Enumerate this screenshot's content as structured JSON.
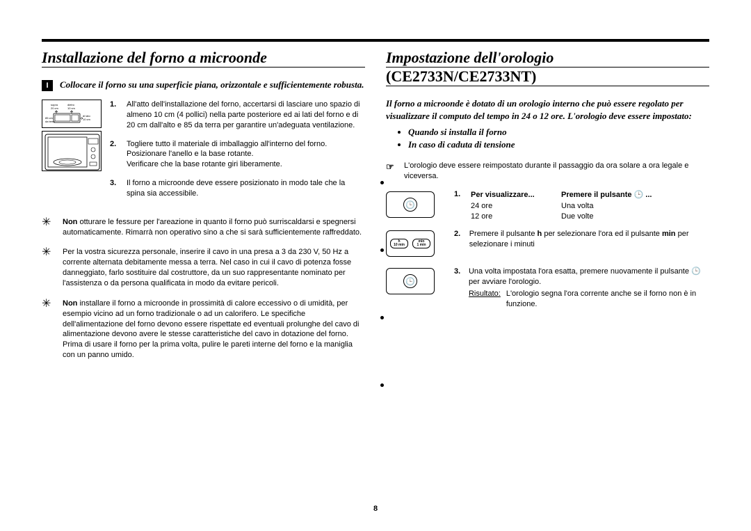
{
  "page_number": "8",
  "left": {
    "title": "Installazione del forno a microonde",
    "intro": "Collocare il forno su una superficie piana, orizzontale e sufficientemente robusta.",
    "diagram_labels": {
      "top": "sopra 20 cm",
      "back": "dietro 10 cm",
      "floor": "85 cm da terra",
      "side": "di lato 10 cm"
    },
    "steps": [
      "All'atto dell'installazione del forno, accertarsi di lasciare uno spazio di almeno 10 cm (4 pollici) nella parte posteriore ed ai lati del forno e di 20 cm dall'alto e 85 da terra per garantire un'adeguata ventilazione.",
      "Togliere tutto il materiale di imballaggio all'interno del forno.\nPosizionare l'anello e la base rotante.\nVerificare che la base rotante giri liberamente.",
      "Il forno a microonde deve essere posizionato in modo tale che la spina sia accessibile."
    ],
    "warnings": [
      "<b>Non</b> otturare le fessure per l'areazione in quanto il forno può surriscaldarsi e spegnersi automaticamente. Rimarrà non operativo sino a che si sarà sufficientemente raffreddato.",
      "Per la vostra sicurezza personale, inserire il cavo in una presa a 3 da 230 V, 50 Hz a corrente alternata debitamente messa a terra. Nel caso in cui il cavo di potenza fosse danneggiato, farlo sostituire dal costruttore, da un suo rappresentante nominato per l'assistenza o da persona qualificata in modo da evitare pericoli.",
      "<b>Non</b> installare il forno a microonde in prossimità di calore eccessivo o di umidità, per esempio vicino ad un forno tradizionale o ad un calorifero. Le specifiche dell'alimentazione del forno devono essere rispettate ed eventuali prolunghe del cavo di alimentazione devono avere le stesse caratteristiche del cavo in dotazione del forno. Prima di usare il forno per la prima volta, pulire le pareti interne del forno e la maniglia con un panno umido."
    ]
  },
  "right": {
    "title": "Impostazione dell'orologio",
    "subtitle": "(CE2733N/CE2733NT)",
    "intro": "Il forno a microonde è dotato di un orologio interno che può essere regolato per visualizzare il computo del tempo in 24 o 12 ore. L'orologio deve essere impostato:",
    "sub_bullets": [
      "Quando si installa il forno",
      "In caso di caduta di tensione"
    ],
    "note": "L'orologio deve essere reimpostato durante il passaggio da ora solare a ora legale e viceversa.",
    "step1": {
      "num": "1.",
      "col1_head": "Per visualizzare...",
      "col2_head": "Premere il pulsante 🕒 ...",
      "r1c1": "24 ore",
      "r1c2": "Una volta",
      "r2c1": "12 ore",
      "r2c2": "Due volte"
    },
    "step2": {
      "num": "2.",
      "text": "Premere il pulsante <b>h</b> per selezionare l'ora ed il pulsante <b>min</b> per selezionare i minuti"
    },
    "step3": {
      "num": "3.",
      "text": "Una volta impostata l'ora esatta, premere nuovamente il pulsante 🕒 per avviare l'orologio.",
      "result_label": "Risultato:",
      "result_text": "L'orologio segna l'ora corrente anche se il forno non è in funzione."
    },
    "btn_h_top": "h",
    "btn_h_bot": "10 min",
    "btn_m_top": "min",
    "btn_m_bot": "1 min"
  }
}
